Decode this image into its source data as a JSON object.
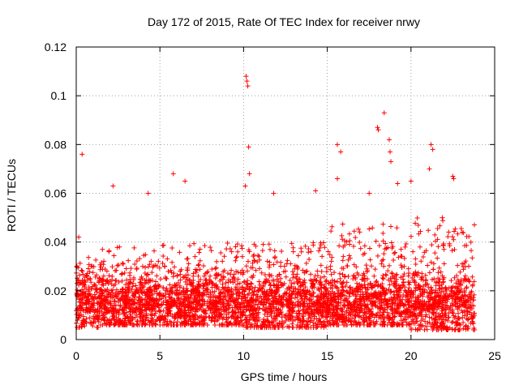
{
  "chart_data": {
    "type": "scatter",
    "title": "Day 172 of 2015, Rate Of TEC Index for receiver nrwy",
    "xlabel": "GPS time / hours",
    "ylabel": "ROTI / TECUs",
    "xlim": [
      0,
      25
    ],
    "ylim": [
      0,
      0.12
    ],
    "xticks": [
      0,
      5,
      10,
      15,
      20,
      25
    ],
    "xtick_labels": [
      "0",
      "5",
      "10",
      "15",
      "20",
      "25"
    ],
    "yticks": [
      0,
      0.02,
      0.04,
      0.06,
      0.08,
      0.1,
      0.12
    ],
    "ytick_labels": [
      "0",
      "0.02",
      "0.04",
      "0.06",
      "0.08",
      "0.1",
      "0.12"
    ],
    "grid": true,
    "marker": "plus",
    "color": "#ff0000",
    "data_range": {
      "x": [
        0,
        23.8
      ]
    },
    "notable_points": [
      {
        "x": 0.15,
        "y": 0.042
      },
      {
        "x": 0.35,
        "y": 0.076
      },
      {
        "x": 2.2,
        "y": 0.063
      },
      {
        "x": 4.3,
        "y": 0.06
      },
      {
        "x": 5.8,
        "y": 0.068
      },
      {
        "x": 6.5,
        "y": 0.065
      },
      {
        "x": 10.1,
        "y": 0.063
      },
      {
        "x": 10.15,
        "y": 0.108
      },
      {
        "x": 10.2,
        "y": 0.106
      },
      {
        "x": 10.25,
        "y": 0.104
      },
      {
        "x": 10.3,
        "y": 0.079
      },
      {
        "x": 10.35,
        "y": 0.068
      },
      {
        "x": 11.8,
        "y": 0.06
      },
      {
        "x": 14.3,
        "y": 0.061
      },
      {
        "x": 15.6,
        "y": 0.08
      },
      {
        "x": 15.6,
        "y": 0.066
      },
      {
        "x": 15.8,
        "y": 0.077
      },
      {
        "x": 17.5,
        "y": 0.06
      },
      {
        "x": 18.0,
        "y": 0.087
      },
      {
        "x": 18.05,
        "y": 0.086
      },
      {
        "x": 18.4,
        "y": 0.093
      },
      {
        "x": 18.7,
        "y": 0.082
      },
      {
        "x": 18.75,
        "y": 0.077
      },
      {
        "x": 18.8,
        "y": 0.073
      },
      {
        "x": 19.2,
        "y": 0.064
      },
      {
        "x": 20.0,
        "y": 0.065
      },
      {
        "x": 21.2,
        "y": 0.08
      },
      {
        "x": 21.3,
        "y": 0.078
      },
      {
        "x": 21.1,
        "y": 0.07
      },
      {
        "x": 22.5,
        "y": 0.067
      },
      {
        "x": 22.55,
        "y": 0.066
      },
      {
        "x": 23.8,
        "y": 0.004
      }
    ],
    "dense_band": {
      "note": "approximate envelope of the bulk of the points",
      "segments": [
        {
          "x_start": 0.0,
          "x_end": 1.5,
          "y_min": 0.005,
          "y_max": 0.035
        },
        {
          "x_start": 1.5,
          "x_end": 5.0,
          "y_min": 0.006,
          "y_max": 0.038
        },
        {
          "x_start": 5.0,
          "x_end": 10.0,
          "y_min": 0.006,
          "y_max": 0.04
        },
        {
          "x_start": 10.0,
          "x_end": 15.0,
          "y_min": 0.005,
          "y_max": 0.04
        },
        {
          "x_start": 15.0,
          "x_end": 20.0,
          "y_min": 0.006,
          "y_max": 0.048
        },
        {
          "x_start": 20.0,
          "x_end": 23.8,
          "y_min": 0.004,
          "y_max": 0.05
        }
      ],
      "typical_value": 0.015
    }
  }
}
